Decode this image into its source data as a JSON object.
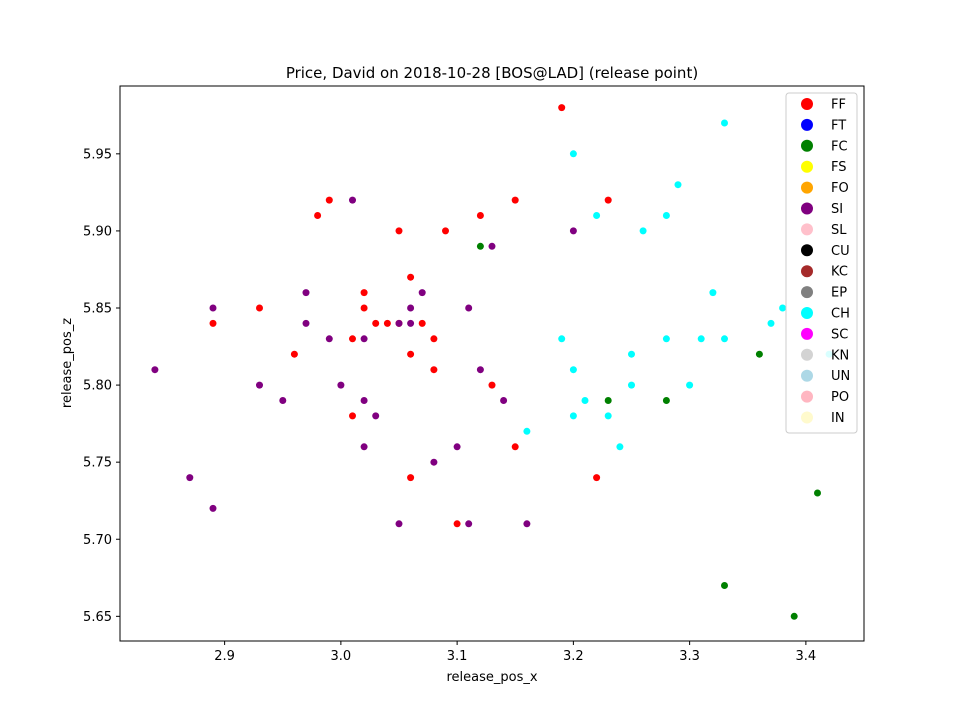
{
  "chart_data": {
    "type": "scatter",
    "title": "Price, David on 2018-10-28 [BOS@LAD] (release point)",
    "xlabel": "release_pos_x",
    "ylabel": "release_pos_z",
    "xlim": [
      2.81,
      3.45
    ],
    "ylim": [
      5.634,
      5.994
    ],
    "xticks": [
      "2.9",
      "3.0",
      "3.1",
      "3.2",
      "3.3",
      "3.4"
    ],
    "yticks": [
      "5.65",
      "5.70",
      "5.75",
      "5.80",
      "5.85",
      "5.90",
      "5.95"
    ],
    "grid": false,
    "legend_position": "top-right",
    "legend": [
      {
        "label": "FF",
        "color": "#ff0000"
      },
      {
        "label": "FT",
        "color": "#0000ff"
      },
      {
        "label": "FC",
        "color": "#008000"
      },
      {
        "label": "FS",
        "color": "#ffff00"
      },
      {
        "label": "FO",
        "color": "#ffa500"
      },
      {
        "label": "SI",
        "color": "#800080"
      },
      {
        "label": "SL",
        "color": "#ffc0cb"
      },
      {
        "label": "CU",
        "color": "#000000"
      },
      {
        "label": "KC",
        "color": "#a52a2a"
      },
      {
        "label": "EP",
        "color": "#808080"
      },
      {
        "label": "CH",
        "color": "#00ffff"
      },
      {
        "label": "SC",
        "color": "#ff00ff"
      },
      {
        "label": "KN",
        "color": "#d3d3d3"
      },
      {
        "label": "UN",
        "color": "#add8e6"
      },
      {
        "label": "PO",
        "color": "#ffb6c1"
      },
      {
        "label": "IN",
        "color": "#fffacd"
      }
    ],
    "series": [
      {
        "name": "FF",
        "color": "#ff0000",
        "points": [
          [
            3.19,
            5.98
          ],
          [
            3.23,
            5.92
          ],
          [
            3.15,
            5.92
          ],
          [
            2.99,
            5.92
          ],
          [
            2.98,
            5.91
          ],
          [
            3.12,
            5.91
          ],
          [
            3.05,
            5.9
          ],
          [
            3.09,
            5.9
          ],
          [
            3.06,
            5.87
          ],
          [
            3.02,
            5.86
          ],
          [
            2.93,
            5.85
          ],
          [
            3.02,
            5.85
          ],
          [
            2.89,
            5.84
          ],
          [
            3.03,
            5.84
          ],
          [
            3.04,
            5.84
          ],
          [
            3.05,
            5.84
          ],
          [
            3.07,
            5.84
          ],
          [
            3.01,
            5.83
          ],
          [
            3.08,
            5.83
          ],
          [
            2.96,
            5.82
          ],
          [
            3.06,
            5.82
          ],
          [
            3.08,
            5.81
          ],
          [
            3.13,
            5.8
          ],
          [
            3.01,
            5.78
          ],
          [
            3.15,
            5.76
          ],
          [
            3.06,
            5.74
          ],
          [
            3.22,
            5.74
          ],
          [
            3.1,
            5.71
          ]
        ]
      },
      {
        "name": "FC",
        "color": "#008000",
        "points": [
          [
            3.12,
            5.89
          ],
          [
            3.36,
            5.82
          ],
          [
            3.23,
            5.79
          ],
          [
            3.28,
            5.79
          ],
          [
            3.41,
            5.73
          ],
          [
            3.33,
            5.67
          ],
          [
            3.39,
            5.65
          ]
        ]
      },
      {
        "name": "SI",
        "color": "#800080",
        "points": [
          [
            3.01,
            5.92
          ],
          [
            3.13,
            5.89
          ],
          [
            3.2,
            5.9
          ],
          [
            2.97,
            5.86
          ],
          [
            3.07,
            5.86
          ],
          [
            2.89,
            5.85
          ],
          [
            3.06,
            5.85
          ],
          [
            3.11,
            5.85
          ],
          [
            2.97,
            5.84
          ],
          [
            3.05,
            5.84
          ],
          [
            3.06,
            5.84
          ],
          [
            2.99,
            5.83
          ],
          [
            3.02,
            5.83
          ],
          [
            2.84,
            5.81
          ],
          [
            3.12,
            5.81
          ],
          [
            2.93,
            5.8
          ],
          [
            3.0,
            5.8
          ],
          [
            2.95,
            5.79
          ],
          [
            3.02,
            5.79
          ],
          [
            3.14,
            5.79
          ],
          [
            3.03,
            5.78
          ],
          [
            3.02,
            5.76
          ],
          [
            3.1,
            5.76
          ],
          [
            3.08,
            5.75
          ],
          [
            2.87,
            5.74
          ],
          [
            2.89,
            5.72
          ],
          [
            3.05,
            5.71
          ],
          [
            3.11,
            5.71
          ],
          [
            3.16,
            5.71
          ]
        ]
      },
      {
        "name": "CH",
        "color": "#00ffff",
        "points": [
          [
            3.33,
            5.97
          ],
          [
            3.2,
            5.95
          ],
          [
            3.29,
            5.93
          ],
          [
            3.22,
            5.91
          ],
          [
            3.28,
            5.91
          ],
          [
            3.26,
            5.9
          ],
          [
            3.32,
            5.86
          ],
          [
            3.38,
            5.85
          ],
          [
            3.37,
            5.84
          ],
          [
            3.19,
            5.83
          ],
          [
            3.28,
            5.83
          ],
          [
            3.31,
            5.83
          ],
          [
            3.33,
            5.83
          ],
          [
            3.25,
            5.82
          ],
          [
            3.42,
            5.82
          ],
          [
            3.2,
            5.81
          ],
          [
            3.25,
            5.8
          ],
          [
            3.3,
            5.8
          ],
          [
            3.21,
            5.79
          ],
          [
            3.2,
            5.78
          ],
          [
            3.23,
            5.78
          ],
          [
            3.16,
            5.77
          ],
          [
            3.24,
            5.76
          ]
        ]
      }
    ]
  }
}
